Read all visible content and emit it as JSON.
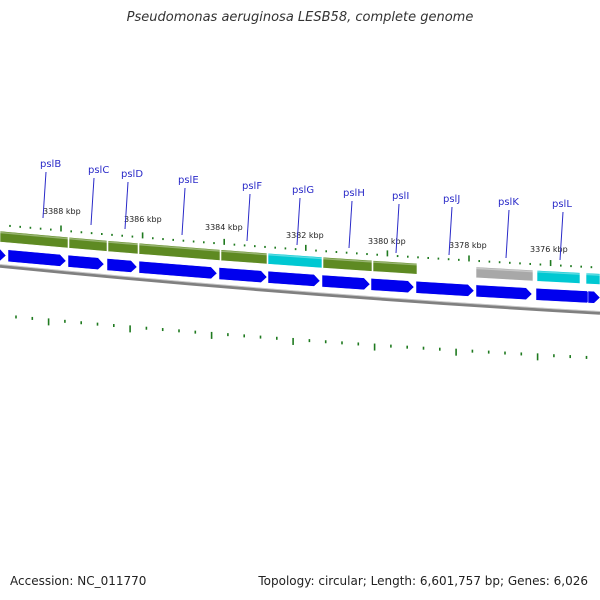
{
  "title": "Pseudomonas aeruginosa LESB58, complete genome",
  "accession": "Accession: NC_011770",
  "topology": "Topology: circular; Length: 6,601,757 bp; Genes: 6,026",
  "gene_labels": [
    "pslB",
    "pslC",
    "pslD",
    "pslE",
    "pslF",
    "pslG",
    "pslH",
    "pslI",
    "pslJ",
    "pslK",
    "pslL"
  ],
  "scale_labels": [
    "3388 kbp",
    "3386 kbp",
    "3384 kbp",
    "3382 kbp",
    "3380 kbp",
    "3378 kbp",
    "3376 kbp"
  ],
  "colors": {
    "gene_label": "#2a2ac8",
    "cds": "#0000ee",
    "olive": "#5e8a22",
    "cyan": "#00c8d2",
    "gray": "#a8a8a8",
    "backbone": "#808080",
    "tick": "#1f7a1f"
  }
}
